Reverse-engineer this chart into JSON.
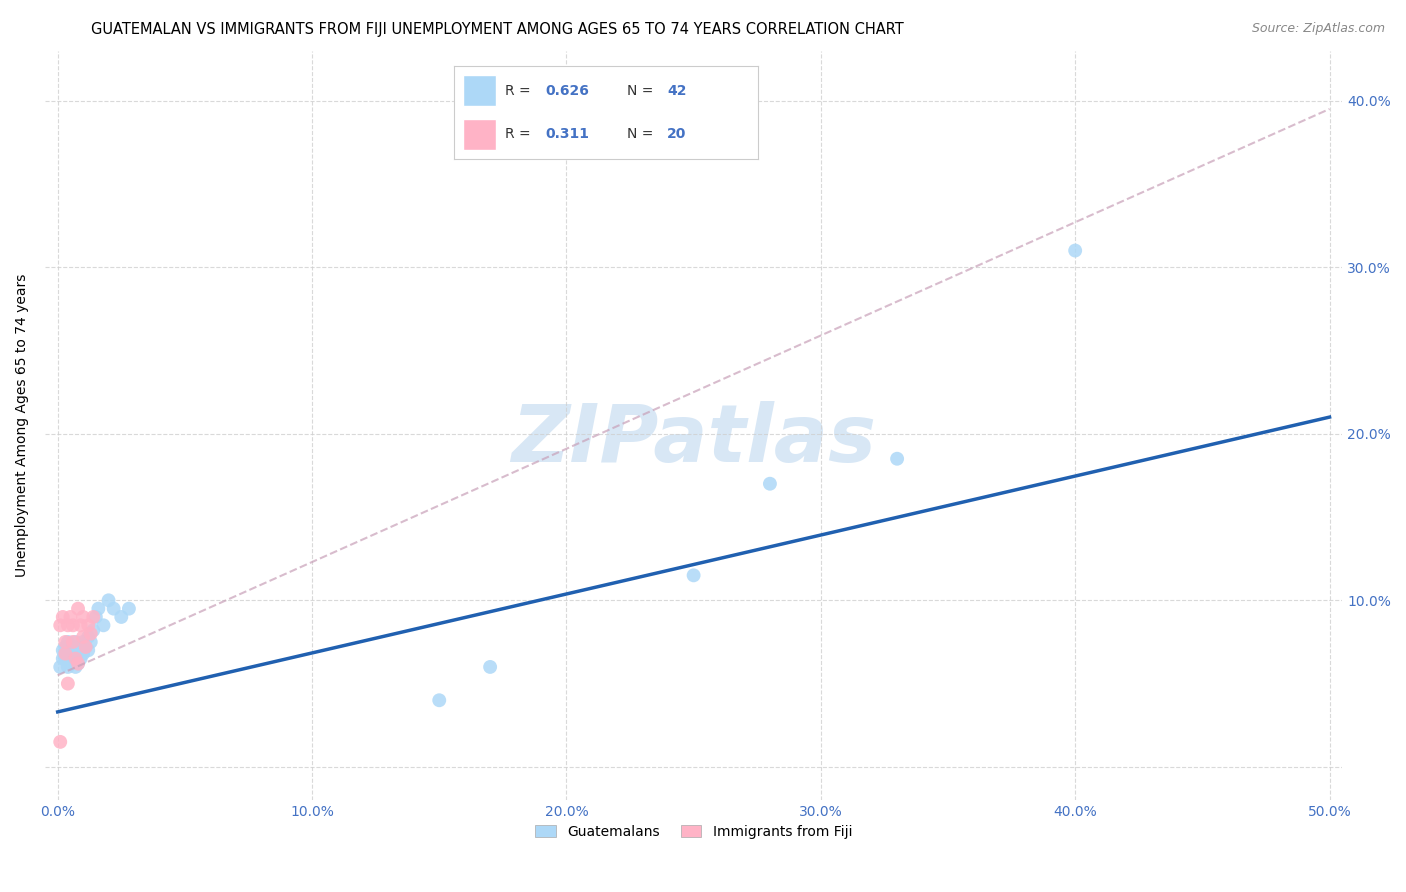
{
  "title": "GUATEMALAN VS IMMIGRANTS FROM FIJI UNEMPLOYMENT AMONG AGES 65 TO 74 YEARS CORRELATION CHART",
  "source": "Source: ZipAtlas.com",
  "ylabel": "Unemployment Among Ages 65 to 74 years",
  "xlim": [
    -0.005,
    0.505
  ],
  "ylim": [
    -0.02,
    0.43
  ],
  "xticks": [
    0.0,
    0.1,
    0.2,
    0.3,
    0.4,
    0.5
  ],
  "yticks": [
    0.0,
    0.1,
    0.2,
    0.3,
    0.4
  ],
  "xtick_labels": [
    "0.0%",
    "10.0%",
    "20.0%",
    "30.0%",
    "40.0%",
    "50.0%"
  ],
  "ytick_labels_right": [
    "",
    "10.0%",
    "20.0%",
    "30.0%",
    "40.0%"
  ],
  "guatemalan_color": "#ADD8F7",
  "fiji_color": "#FFB3C6",
  "trend_blue": "#2060B0",
  "trend_pink_color": "#D4A0B0",
  "R_guatemalan": 0.626,
  "N_guatemalan": 42,
  "R_fiji": 0.311,
  "N_fiji": 20,
  "legend_label_1": "Guatemalans",
  "legend_label_2": "Immigrants from Fiji",
  "watermark": "ZIPatlas",
  "title_fontsize": 10.5,
  "axis_fontsize": 10,
  "tick_fontsize": 10,
  "source_fontsize": 9,
  "guatemalan_x": [
    0.001,
    0.002,
    0.002,
    0.003,
    0.003,
    0.003,
    0.004,
    0.004,
    0.004,
    0.005,
    0.005,
    0.005,
    0.006,
    0.006,
    0.007,
    0.007,
    0.007,
    0.008,
    0.008,
    0.008,
    0.009,
    0.009,
    0.01,
    0.01,
    0.011,
    0.012,
    0.012,
    0.013,
    0.014,
    0.015,
    0.016,
    0.018,
    0.02,
    0.022,
    0.025,
    0.028,
    0.15,
    0.17,
    0.25,
    0.28,
    0.33,
    0.4
  ],
  "guatemalan_y": [
    0.06,
    0.065,
    0.07,
    0.065,
    0.068,
    0.072,
    0.06,
    0.068,
    0.075,
    0.062,
    0.065,
    0.07,
    0.065,
    0.072,
    0.06,
    0.068,
    0.075,
    0.062,
    0.068,
    0.072,
    0.065,
    0.07,
    0.068,
    0.075,
    0.072,
    0.078,
    0.07,
    0.075,
    0.082,
    0.09,
    0.095,
    0.085,
    0.1,
    0.095,
    0.09,
    0.095,
    0.04,
    0.06,
    0.115,
    0.17,
    0.185,
    0.31
  ],
  "fiji_x": [
    0.001,
    0.002,
    0.003,
    0.003,
    0.004,
    0.005,
    0.006,
    0.006,
    0.007,
    0.008,
    0.008,
    0.009,
    0.01,
    0.01,
    0.011,
    0.012,
    0.013,
    0.014,
    0.001,
    0.004
  ],
  "fiji_y": [
    0.085,
    0.09,
    0.068,
    0.075,
    0.085,
    0.09,
    0.075,
    0.085,
    0.065,
    0.062,
    0.095,
    0.085,
    0.078,
    0.09,
    0.072,
    0.085,
    0.08,
    0.09,
    0.015,
    0.05
  ],
  "trend_g_x0": 0.0,
  "trend_g_y0": 0.033,
  "trend_g_x1": 0.5,
  "trend_g_y1": 0.21,
  "trend_f_x0": 0.0,
  "trend_f_y0": 0.055,
  "trend_f_x1": 0.5,
  "trend_f_y1": 0.395
}
